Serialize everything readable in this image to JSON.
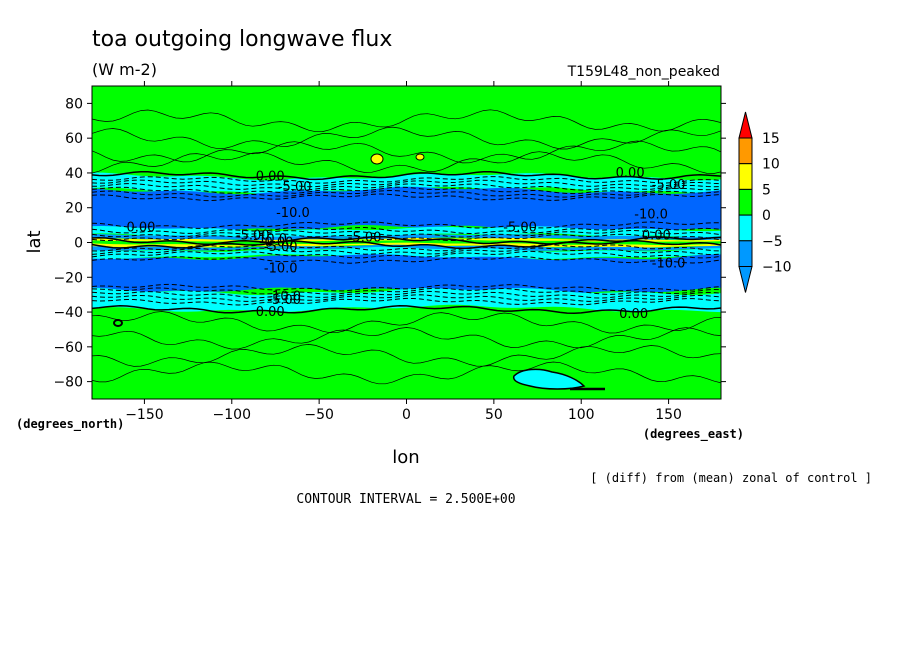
{
  "chart_data": {
    "type": "heatmap",
    "title": "toa outgoing longwave flux",
    "units": "(W m-2)",
    "run_label": "T159L48_non_peaked",
    "xlabel": "lon",
    "ylabel": "lat",
    "x_unit_note": "(degrees_east)",
    "y_unit_note": "(degrees_north)",
    "xlim": [
      -180,
      180
    ],
    "ylim": [
      -90,
      90
    ],
    "x_ticks": [
      -150,
      -100,
      -50,
      0,
      50,
      100,
      150
    ],
    "y_ticks": [
      -80,
      -60,
      -40,
      -20,
      0,
      20,
      40,
      60,
      80
    ],
    "colorbar": {
      "levels": [
        15,
        10,
        5,
        0,
        -5,
        -10
      ],
      "colors": {
        "above_15": "#ff0000",
        "10_to_15": "#ff9900",
        "5_to_10": "#ffff00",
        "0_to_5": "#00ff00",
        "neg5_to_0": "#00ffff",
        "neg10_to_neg5": "#0099ff",
        "below_neg10": "#0099ff",
        "band_dark_blue": "#0066ff"
      }
    },
    "zonal_bands": [
      {
        "lat_from": 90,
        "lat_to": 38,
        "value_range": "0 to 5"
      },
      {
        "lat_from": 38,
        "lat_to": 30,
        "value_range": "-5 to 0"
      },
      {
        "lat_from": 30,
        "lat_to": 8,
        "value_range": "below -10"
      },
      {
        "lat_from": 8,
        "lat_to": -8,
        "value_range": "mixed -5 to 10"
      },
      {
        "lat_from": -8,
        "lat_to": -28,
        "value_range": "below -10"
      },
      {
        "lat_from": -28,
        "lat_to": -38,
        "value_range": "-5 to 0"
      },
      {
        "lat_from": -38,
        "lat_to": -90,
        "value_range": "0 to 5"
      }
    ],
    "contour_labels": [
      "0.00",
      "-5.00",
      "-10.0",
      "0.00",
      "-5.00",
      "-10.0",
      "-5.00",
      "0.00",
      "-5.00",
      "-10.0",
      "-10.0",
      "-5.00",
      "0.00",
      "-10.0",
      "-5.00",
      "0.00",
      "-5.00",
      "-10.0",
      "0.00",
      "0.00"
    ],
    "contour_interval_text": "CONTOUR INTERVAL = 2.500E+00",
    "note": "[ (diff) from (mean) zonal of control ]"
  }
}
